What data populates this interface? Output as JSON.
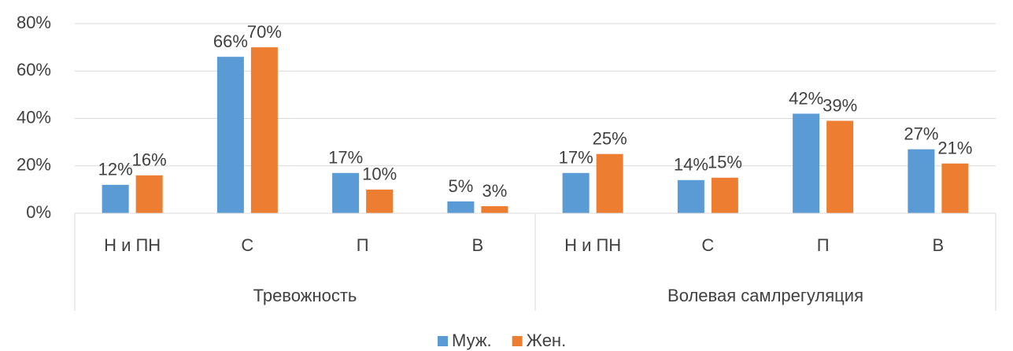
{
  "chart_data": {
    "type": "bar",
    "groups": [
      {
        "name": "Тревожность",
        "categories": [
          "Н и ПН",
          "С",
          "П",
          "В"
        ]
      },
      {
        "name": "Волевая самлрегуляция",
        "categories": [
          "Н и ПН",
          "С",
          "П",
          "В"
        ]
      }
    ],
    "series": [
      {
        "name": "Муж.",
        "color": "#5b9bd5",
        "values": [
          12,
          66,
          17,
          5,
          17,
          14,
          42,
          27
        ],
        "value_labels": [
          "12%",
          "66%",
          "17%",
          "5%",
          "17%",
          "14%",
          "42%",
          "27%"
        ]
      },
      {
        "name": "Жен.",
        "color": "#ed7d31",
        "values": [
          16,
          70,
          10,
          3,
          25,
          15,
          39,
          21
        ],
        "value_labels": [
          "16%",
          "70%",
          "10%",
          "3%",
          "25%",
          "15%",
          "39%",
          "21%"
        ]
      }
    ],
    "ylim": [
      0,
      80
    ],
    "yticks": [
      {
        "value": 0,
        "label": "0%"
      },
      {
        "value": 20,
        "label": "20%"
      },
      {
        "value": 40,
        "label": "40%"
      },
      {
        "value": 60,
        "label": "60%"
      },
      {
        "value": 80,
        "label": "80%"
      }
    ],
    "grid": true,
    "legend": "bottom"
  }
}
